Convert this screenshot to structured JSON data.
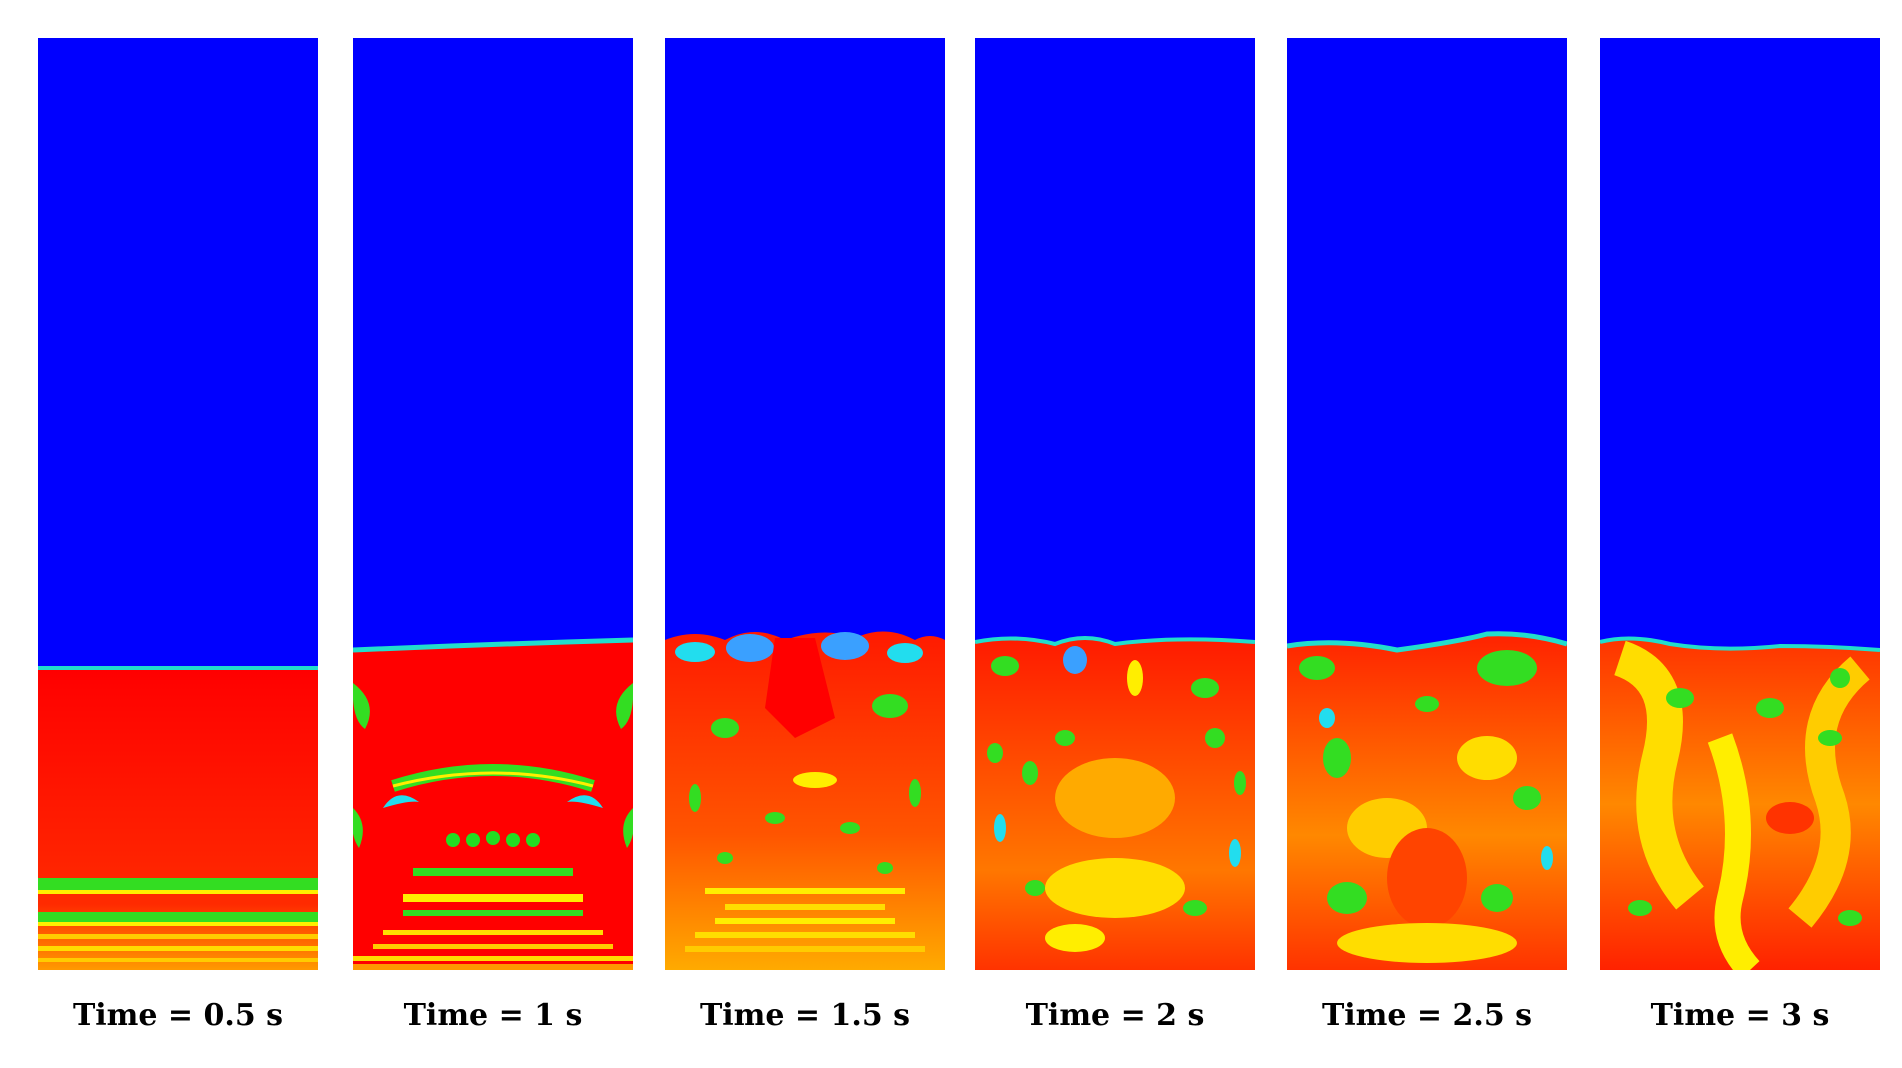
{
  "figure": {
    "panels": [
      {
        "caption": "Time = 0.5 s",
        "time_s": 0.5
      },
      {
        "caption": "Time = 1 s",
        "time_s": 1
      },
      {
        "caption": "Time = 1.5 s",
        "time_s": 1.5
      },
      {
        "caption": "Time = 2 s",
        "time_s": 2
      },
      {
        "caption": "Time = 2.5 s",
        "time_s": 2.5
      },
      {
        "caption": "Time = 3 s",
        "time_s": 3
      }
    ],
    "colors": {
      "upper_phase": "#0000ff",
      "lower_phase": "#ff0000",
      "interface_green": "#22dd22",
      "mixed_yellow": "#ffee00",
      "mixed_orange": "#ff8800",
      "cyan": "#22ddee"
    }
  }
}
